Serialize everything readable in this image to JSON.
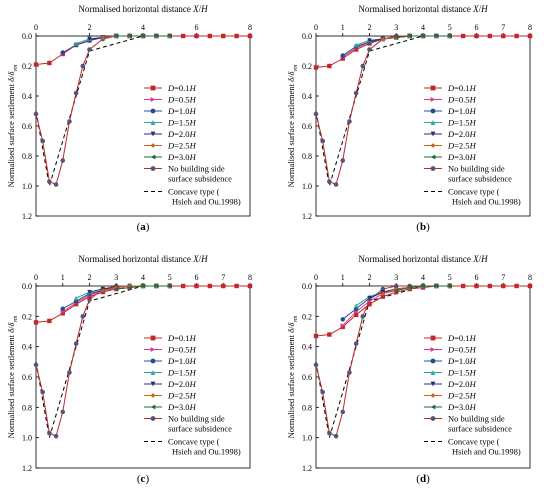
{
  "figure": {
    "panel_labels": [
      "(a)",
      "(b)",
      "(c)",
      "(d)"
    ]
  },
  "style": {
    "series_colors": [
      "#c0282d",
      "#e0368e",
      "#1f4e8c",
      "#2aa6a0",
      "#2b2a7a",
      "#c8641e",
      "#1e6b3a"
    ],
    "series_markers": [
      "square",
      "triangle-right",
      "circle",
      "triangle-up",
      "triangle-down",
      "diamond",
      "triangle-left"
    ],
    "baseline_color": "#c0282d",
    "baseline_marker_color": "#555577",
    "concave_color": "#000000"
  },
  "legend": {
    "series_names": [
      "D=0.1H",
      "D=0.5H",
      "D=1.0H",
      "D=1.5H",
      "D=2.0H",
      "D=2.5H",
      "D=3.0H"
    ],
    "baseline_name_line1": "No building side",
    "baseline_name_line2": "surface subsidence",
    "concave_name_line1": "Concave type (",
    "concave_name_line2": "Hsieh and Ou.1998)"
  },
  "chart_data": [
    {
      "type": "line",
      "panel": "(a)",
      "xlabel": "Normalised horizontal distance X/H",
      "ylabel": "Normalised surface settlement δ/δvm",
      "xlim": [
        0,
        8
      ],
      "ylim": [
        0,
        1.2
      ],
      "y_inverted": true,
      "x_axis_position": "top",
      "xticks": [
        0,
        2,
        4,
        6,
        8
      ],
      "yticks": [
        0.0,
        0.2,
        0.4,
        0.6,
        0.8,
        1.0,
        1.2
      ],
      "ytick_labels": [
        "0.0",
        "0.2",
        "0.4",
        "0.6",
        "0.8",
        "1.0",
        "1.2"
      ],
      "legend_position": "right",
      "baseline": {
        "x": [
          0,
          0.25,
          0.5,
          0.75,
          1.0,
          1.25,
          1.5,
          1.75,
          2.0,
          2.5,
          3.0,
          3.5,
          4.0,
          5.0,
          6.0,
          7.0,
          8.0
        ],
        "y": [
          0.52,
          0.7,
          0.97,
          0.99,
          0.83,
          0.57,
          0.38,
          0.2,
          0.09,
          0.02,
          0.0,
          0.0,
          0.0,
          0.0,
          0.0,
          0.0,
          0.0
        ]
      },
      "concave": {
        "x": [
          0,
          0.5,
          2.0,
          4.0
        ],
        "y": [
          0.5,
          1.0,
          0.1,
          0.0
        ]
      },
      "series": [
        {
          "name": "D=0.1H",
          "x": [
            0,
            0.5,
            1.0,
            1.5,
            2.0,
            2.5,
            3.0,
            3.5,
            4.0,
            4.5,
            5.0,
            5.5,
            6.0,
            6.5,
            7.0,
            7.5,
            8.0
          ],
          "y": [
            0.19,
            0.18,
            0.12,
            0.06,
            0.03,
            0.01,
            0.0,
            0.0,
            0.0,
            0.0,
            0.0,
            0.0,
            0.0,
            0.0,
            0.0,
            0.0,
            0.0
          ]
        },
        {
          "name": "D=0.5H",
          "x": [
            1.0,
            1.5,
            2.0,
            2.5,
            3.0,
            3.5,
            4.0,
            4.5,
            5.0
          ],
          "y": [
            0.12,
            0.06,
            0.03,
            0.01,
            0.0,
            0.0,
            0.0,
            0.0,
            0.0
          ]
        },
        {
          "name": "D=1.0H",
          "x": [
            1.0,
            1.5,
            2.0,
            2.5,
            3.0,
            3.5,
            4.0,
            4.5,
            5.0
          ],
          "y": [
            0.11,
            0.06,
            0.03,
            0.01,
            0.0,
            0.0,
            0.0,
            0.0,
            0.0
          ]
        },
        {
          "name": "D=1.5H",
          "x": [
            1.5,
            2.0,
            2.5,
            3.0,
            3.5,
            4.0,
            4.5,
            5.0
          ],
          "y": [
            0.05,
            0.02,
            0.01,
            0.0,
            0.0,
            0.0,
            0.0,
            0.0
          ]
        },
        {
          "name": "D=2.0H",
          "x": [
            2.0,
            2.5,
            3.0,
            3.5,
            4.0,
            4.5,
            5.0
          ],
          "y": [
            0.02,
            0.01,
            0.0,
            0.0,
            0.0,
            0.0,
            0.0
          ]
        },
        {
          "name": "D=2.5H",
          "x": [
            2.5,
            3.0,
            3.5,
            4.0,
            4.5,
            5.0
          ],
          "y": [
            0.01,
            0.0,
            0.0,
            0.0,
            0.0,
            0.0
          ]
        },
        {
          "name": "D=3.0H",
          "x": [
            3.0,
            3.5,
            4.0,
            4.5,
            5.0
          ],
          "y": [
            0.0,
            0.0,
            0.0,
            0.0,
            0.0
          ]
        }
      ]
    },
    {
      "type": "line",
      "panel": "(b)",
      "xlabel": "Normalised horizontal distance X/H",
      "ylabel": "Normalised surface settlement δ/δvm",
      "xlim": [
        0,
        8
      ],
      "ylim": [
        0,
        1.2
      ],
      "y_inverted": true,
      "x_axis_position": "top",
      "xticks": [
        0,
        1,
        2,
        3,
        4,
        5,
        6,
        7,
        8
      ],
      "yticks": [
        0.0,
        0.2,
        0.4,
        0.6,
        0.8,
        1.0,
        1.2
      ],
      "ytick_labels": [
        "0.0",
        "0.2",
        "0.4",
        "0.6",
        "0.8",
        "1.0",
        "1.2"
      ],
      "legend_position": "right",
      "baseline": {
        "x": [
          0,
          0.25,
          0.5,
          0.75,
          1.0,
          1.25,
          1.5,
          1.75,
          2.0,
          2.5,
          3.0,
          3.5,
          4.0,
          5.0,
          6.0,
          7.0,
          8.0
        ],
        "y": [
          0.52,
          0.7,
          0.97,
          0.99,
          0.83,
          0.57,
          0.38,
          0.2,
          0.09,
          0.02,
          0.0,
          0.0,
          0.0,
          0.0,
          0.0,
          0.0,
          0.0
        ]
      },
      "concave": {
        "x": [
          0,
          0.5,
          2.0,
          4.0
        ],
        "y": [
          0.5,
          1.0,
          0.1,
          0.0
        ]
      },
      "series": [
        {
          "name": "D=0.1H",
          "x": [
            0,
            0.5,
            1.0,
            1.5,
            2.0,
            2.5,
            3.0,
            3.5,
            4.0,
            4.5,
            5.0,
            5.5,
            6.0,
            6.5,
            7.0,
            7.5,
            8.0
          ],
          "y": [
            0.21,
            0.2,
            0.15,
            0.09,
            0.05,
            0.02,
            0.01,
            0.0,
            0.0,
            0.0,
            0.0,
            0.0,
            0.0,
            0.0,
            0.0,
            0.0,
            0.0
          ]
        },
        {
          "name": "D=0.5H",
          "x": [
            1.0,
            1.5,
            2.0,
            2.5,
            3.0,
            3.5,
            4.0,
            4.5,
            5.0
          ],
          "y": [
            0.14,
            0.08,
            0.04,
            0.02,
            0.01,
            0.0,
            0.0,
            0.0,
            0.0
          ]
        },
        {
          "name": "D=1.0H",
          "x": [
            1.0,
            1.5,
            2.0,
            2.5,
            3.0,
            3.5,
            4.0,
            4.5,
            5.0
          ],
          "y": [
            0.13,
            0.07,
            0.04,
            0.02,
            0.01,
            0.0,
            0.0,
            0.0,
            0.0
          ]
        },
        {
          "name": "D=1.5H",
          "x": [
            1.5,
            2.0,
            2.5,
            3.0,
            3.5,
            4.0,
            4.5,
            5.0
          ],
          "y": [
            0.06,
            0.03,
            0.02,
            0.01,
            0.0,
            0.0,
            0.0,
            0.0
          ]
        },
        {
          "name": "D=2.0H",
          "x": [
            2.0,
            2.5,
            3.0,
            3.5,
            4.0,
            4.5,
            5.0
          ],
          "y": [
            0.03,
            0.02,
            0.01,
            0.0,
            0.0,
            0.0,
            0.0
          ]
        },
        {
          "name": "D=2.5H",
          "x": [
            2.5,
            3.0,
            3.5,
            4.0,
            4.5,
            5.0
          ],
          "y": [
            0.02,
            0.01,
            0.0,
            0.0,
            0.0,
            0.0
          ]
        },
        {
          "name": "D=3.0H",
          "x": [
            3.0,
            3.5,
            4.0,
            4.5,
            5.0
          ],
          "y": [
            0.01,
            0.0,
            0.0,
            0.0,
            0.0
          ]
        }
      ]
    },
    {
      "type": "line",
      "panel": "(c)",
      "xlabel": "Normalised horizontal distance X/H",
      "ylabel": "Normalised surface settlement δ/δvm",
      "xlim": [
        0,
        8
      ],
      "ylim": [
        0,
        1.2
      ],
      "y_inverted": true,
      "x_axis_position": "top",
      "xticks": [
        0,
        1,
        2,
        3,
        4,
        5,
        6,
        7,
        8
      ],
      "yticks": [
        0.0,
        0.2,
        0.4,
        0.6,
        0.8,
        1.0,
        1.2
      ],
      "ytick_labels": [
        "0.0",
        "0.2",
        "0.4",
        "0.6",
        "0.8",
        "1.0",
        "1.2"
      ],
      "legend_position": "right",
      "baseline": {
        "x": [
          0,
          0.25,
          0.5,
          0.75,
          1.0,
          1.25,
          1.5,
          1.75,
          2.0,
          2.5,
          3.0,
          3.5,
          4.0,
          5.0,
          6.0,
          7.0,
          8.0
        ],
        "y": [
          0.52,
          0.7,
          0.97,
          0.99,
          0.83,
          0.57,
          0.38,
          0.2,
          0.09,
          0.02,
          0.0,
          0.0,
          0.0,
          0.0,
          0.0,
          0.0,
          0.0
        ]
      },
      "concave": {
        "x": [
          0,
          0.5,
          2.0,
          4.0
        ],
        "y": [
          0.5,
          1.0,
          0.1,
          0.0
        ]
      },
      "series": [
        {
          "name": "D=0.1H",
          "x": [
            0,
            0.5,
            1.0,
            1.5,
            2.0,
            2.5,
            3.0,
            3.5,
            4.0,
            4.5,
            5.0,
            5.5,
            6.0,
            6.5,
            7.0,
            7.5,
            8.0
          ],
          "y": [
            0.24,
            0.23,
            0.18,
            0.12,
            0.07,
            0.04,
            0.02,
            0.01,
            0.0,
            0.0,
            0.0,
            0.0,
            0.0,
            0.0,
            0.0,
            0.0,
            0.0
          ]
        },
        {
          "name": "D=0.5H",
          "x": [
            1.0,
            1.5,
            2.0,
            2.5,
            3.0,
            3.5,
            4.0,
            4.5,
            5.0
          ],
          "y": [
            0.17,
            0.11,
            0.06,
            0.03,
            0.02,
            0.01,
            0.0,
            0.0,
            0.0
          ]
        },
        {
          "name": "D=1.0H",
          "x": [
            1.0,
            1.5,
            2.0,
            2.5,
            3.0,
            3.5,
            4.0,
            4.5,
            5.0
          ],
          "y": [
            0.15,
            0.1,
            0.05,
            0.03,
            0.01,
            0.0,
            0.0,
            0.0,
            0.0
          ]
        },
        {
          "name": "D=1.5H",
          "x": [
            1.5,
            2.0,
            2.5,
            3.0,
            3.5,
            4.0,
            4.5,
            5.0
          ],
          "y": [
            0.08,
            0.04,
            0.02,
            0.01,
            0.0,
            0.0,
            0.0,
            0.0
          ]
        },
        {
          "name": "D=2.0H",
          "x": [
            2.0,
            2.5,
            3.0,
            3.5,
            4.0,
            4.5,
            5.0
          ],
          "y": [
            0.04,
            0.02,
            0.01,
            0.0,
            0.0,
            0.0,
            0.0
          ]
        },
        {
          "name": "D=2.5H",
          "x": [
            2.5,
            3.0,
            3.5,
            4.0,
            4.5,
            5.0
          ],
          "y": [
            0.03,
            0.01,
            0.0,
            0.0,
            0.0,
            0.0
          ]
        },
        {
          "name": "D=3.0H",
          "x": [
            3.0,
            3.5,
            4.0,
            4.5,
            5.0
          ],
          "y": [
            0.02,
            0.01,
            0.0,
            0.0,
            0.0
          ]
        }
      ]
    },
    {
      "type": "line",
      "panel": "(d)",
      "xlabel": "Normalised horizontal distance X/H",
      "ylabel": "Normalised surface settlement δ/δvm",
      "xlim": [
        0,
        8
      ],
      "ylim": [
        0,
        1.2
      ],
      "y_inverted": true,
      "x_axis_position": "top",
      "xticks": [
        0,
        1,
        2,
        3,
        4,
        5,
        6,
        7,
        8
      ],
      "yticks": [
        0.0,
        0.2,
        0.4,
        0.6,
        0.8,
        1.0,
        1.2
      ],
      "ytick_labels": [
        "0.0",
        "0.2",
        "0.4",
        "0.6",
        "0.8",
        "1.0",
        "1.2"
      ],
      "legend_position": "right",
      "baseline": {
        "x": [
          0,
          0.25,
          0.5,
          0.75,
          1.0,
          1.25,
          1.5,
          1.75,
          2.0,
          2.5,
          3.0,
          3.5,
          4.0,
          5.0,
          6.0,
          7.0,
          8.0
        ],
        "y": [
          0.52,
          0.7,
          0.97,
          0.99,
          0.83,
          0.57,
          0.38,
          0.2,
          0.09,
          0.02,
          0.0,
          0.0,
          0.0,
          0.0,
          0.0,
          0.0,
          0.0
        ]
      },
      "concave": {
        "x": [
          0,
          0.5,
          2.0,
          4.0
        ],
        "y": [
          0.5,
          1.0,
          0.1,
          0.0
        ]
      },
      "series": [
        {
          "name": "D=0.1H",
          "x": [
            0,
            0.5,
            1.0,
            1.5,
            2.0,
            2.5,
            3.0,
            3.5,
            4.0,
            4.5,
            5.0,
            5.5,
            6.0,
            6.5,
            7.0,
            7.5,
            8.0
          ],
          "y": [
            0.33,
            0.32,
            0.27,
            0.19,
            0.12,
            0.07,
            0.04,
            0.02,
            0.01,
            0.0,
            0.0,
            0.0,
            0.0,
            0.0,
            0.0,
            0.0,
            0.0
          ]
        },
        {
          "name": "D=0.5H",
          "x": [
            1.0,
            1.5,
            2.0,
            2.5,
            3.0,
            3.5,
            4.0,
            4.5,
            5.0
          ],
          "y": [
            0.26,
            0.17,
            0.1,
            0.05,
            0.03,
            0.01,
            0.0,
            0.0,
            0.0
          ]
        },
        {
          "name": "D=1.0H",
          "x": [
            1.0,
            1.5,
            2.0,
            2.5,
            3.0,
            3.5,
            4.0,
            4.5,
            5.0
          ],
          "y": [
            0.22,
            0.15,
            0.08,
            0.04,
            0.02,
            0.01,
            0.0,
            0.0,
            0.0
          ]
        },
        {
          "name": "D=1.5H",
          "x": [
            1.5,
            2.0,
            2.5,
            3.0,
            3.5,
            4.0,
            4.5,
            5.0
          ],
          "y": [
            0.13,
            0.07,
            0.04,
            0.02,
            0.01,
            0.0,
            0.0,
            0.0
          ]
        },
        {
          "name": "D=2.0H",
          "x": [
            2.0,
            2.5,
            3.0,
            3.5,
            4.0,
            4.5,
            5.0
          ],
          "y": [
            0.08,
            0.04,
            0.02,
            0.01,
            0.0,
            0.0,
            0.0
          ]
        },
        {
          "name": "D=2.5H",
          "x": [
            2.5,
            3.0,
            3.5,
            4.0,
            4.5,
            5.0
          ],
          "y": [
            0.05,
            0.02,
            0.01,
            0.0,
            0.0,
            0.0
          ]
        },
        {
          "name": "D=3.0H",
          "x": [
            3.0,
            3.5,
            4.0,
            4.5,
            5.0
          ],
          "y": [
            0.03,
            0.01,
            0.0,
            0.0,
            0.0
          ]
        }
      ]
    }
  ]
}
